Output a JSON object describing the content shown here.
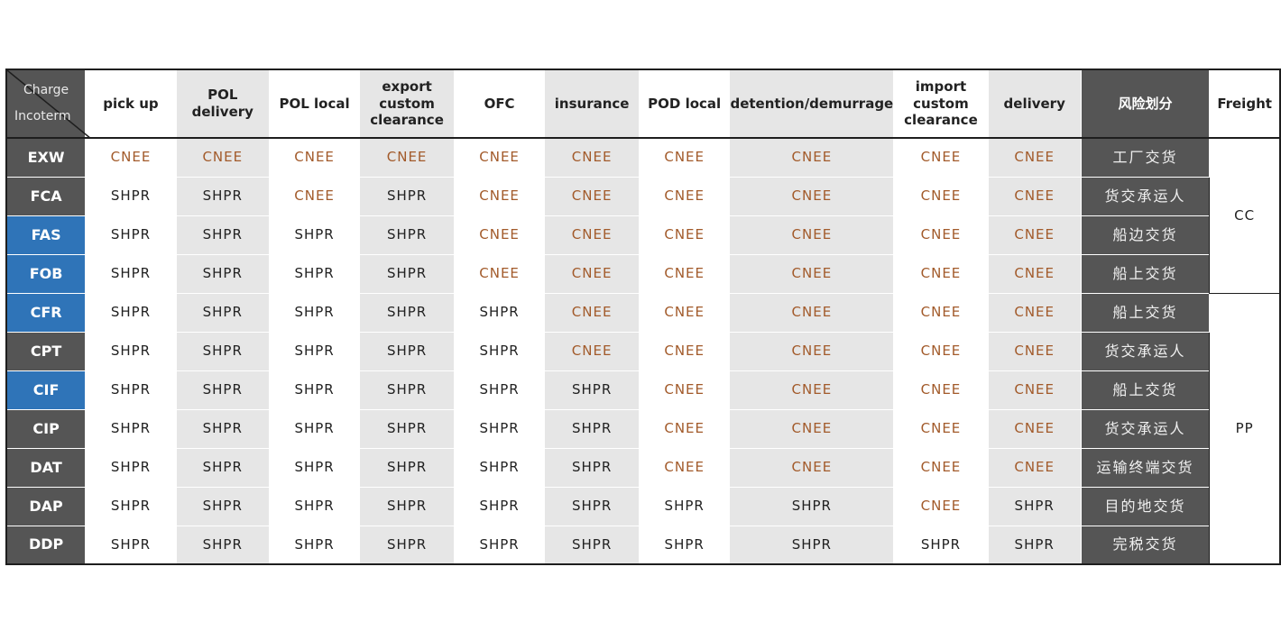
{
  "header": {
    "corner_top": "Charge",
    "corner_bottom": "Incoterm",
    "columns": [
      {
        "label": "pick up",
        "shade": false
      },
      {
        "label": "POL delivery",
        "shade": true
      },
      {
        "label": "POL local",
        "shade": false
      },
      {
        "label": "export custom clearance",
        "shade": true
      },
      {
        "label": "OFC",
        "shade": false
      },
      {
        "label": "insurance",
        "shade": true
      },
      {
        "label": "POD local",
        "shade": false
      },
      {
        "label": "detention/demurrage",
        "shade": true
      },
      {
        "label": "import custom clearance",
        "shade": false
      },
      {
        "label": "delivery",
        "shade": true
      }
    ],
    "risk_label": "风险划分",
    "freight_label": "Freight"
  },
  "freight_groups": [
    {
      "label": "CC",
      "rowspan": 4
    },
    {
      "label": "PP",
      "rowspan": 7
    }
  ],
  "rows": [
    {
      "incoterm": "EXW",
      "highlight": false,
      "values": [
        "CNEE",
        "CNEE",
        "CNEE",
        "CNEE",
        "CNEE",
        "CNEE",
        "CNEE",
        "CNEE",
        "CNEE",
        "CNEE"
      ],
      "risk": "工厂交货"
    },
    {
      "incoterm": "FCA",
      "highlight": false,
      "values": [
        "SHPR",
        "SHPR",
        "CNEE",
        "SHPR",
        "CNEE",
        "CNEE",
        "CNEE",
        "CNEE",
        "CNEE",
        "CNEE"
      ],
      "risk": "货交承运人"
    },
    {
      "incoterm": "FAS",
      "highlight": true,
      "values": [
        "SHPR",
        "SHPR",
        "SHPR",
        "SHPR",
        "CNEE",
        "CNEE",
        "CNEE",
        "CNEE",
        "CNEE",
        "CNEE"
      ],
      "risk": "船边交货"
    },
    {
      "incoterm": "FOB",
      "highlight": true,
      "values": [
        "SHPR",
        "SHPR",
        "SHPR",
        "SHPR",
        "CNEE",
        "CNEE",
        "CNEE",
        "CNEE",
        "CNEE",
        "CNEE"
      ],
      "risk": "船上交货"
    },
    {
      "incoterm": "CFR",
      "highlight": true,
      "values": [
        "SHPR",
        "SHPR",
        "SHPR",
        "SHPR",
        "SHPR",
        "CNEE",
        "CNEE",
        "CNEE",
        "CNEE",
        "CNEE"
      ],
      "risk": "船上交货"
    },
    {
      "incoterm": "CPT",
      "highlight": false,
      "values": [
        "SHPR",
        "SHPR",
        "SHPR",
        "SHPR",
        "SHPR",
        "CNEE",
        "CNEE",
        "CNEE",
        "CNEE",
        "CNEE"
      ],
      "risk": "货交承运人"
    },
    {
      "incoterm": "CIF",
      "highlight": true,
      "values": [
        "SHPR",
        "SHPR",
        "SHPR",
        "SHPR",
        "SHPR",
        "SHPR",
        "CNEE",
        "CNEE",
        "CNEE",
        "CNEE"
      ],
      "risk": "船上交货"
    },
    {
      "incoterm": "CIP",
      "highlight": false,
      "values": [
        "SHPR",
        "SHPR",
        "SHPR",
        "SHPR",
        "SHPR",
        "SHPR",
        "CNEE",
        "CNEE",
        "CNEE",
        "CNEE"
      ],
      "risk": "货交承运人"
    },
    {
      "incoterm": "DAT",
      "highlight": false,
      "values": [
        "SHPR",
        "SHPR",
        "SHPR",
        "SHPR",
        "SHPR",
        "SHPR",
        "CNEE",
        "CNEE",
        "CNEE",
        "CNEE"
      ],
      "risk": "运输终端交货"
    },
    {
      "incoterm": "DAP",
      "highlight": false,
      "values": [
        "SHPR",
        "SHPR",
        "SHPR",
        "SHPR",
        "SHPR",
        "SHPR",
        "SHPR",
        "SHPR",
        "CNEE",
        "SHPR"
      ],
      "risk": "目的地交货"
    },
    {
      "incoterm": "DDP",
      "highlight": false,
      "values": [
        "SHPR",
        "SHPR",
        "SHPR",
        "SHPR",
        "SHPR",
        "SHPR",
        "SHPR",
        "SHPR",
        "SHPR",
        "SHPR"
      ],
      "risk": "完税交货"
    }
  ],
  "colors": {
    "dark_header": "#555555",
    "highlight_blue": "#2f74b8",
    "cnee_text": "#a25a2a",
    "shpr_text": "#222222",
    "shade": "#e6e6e6"
  }
}
